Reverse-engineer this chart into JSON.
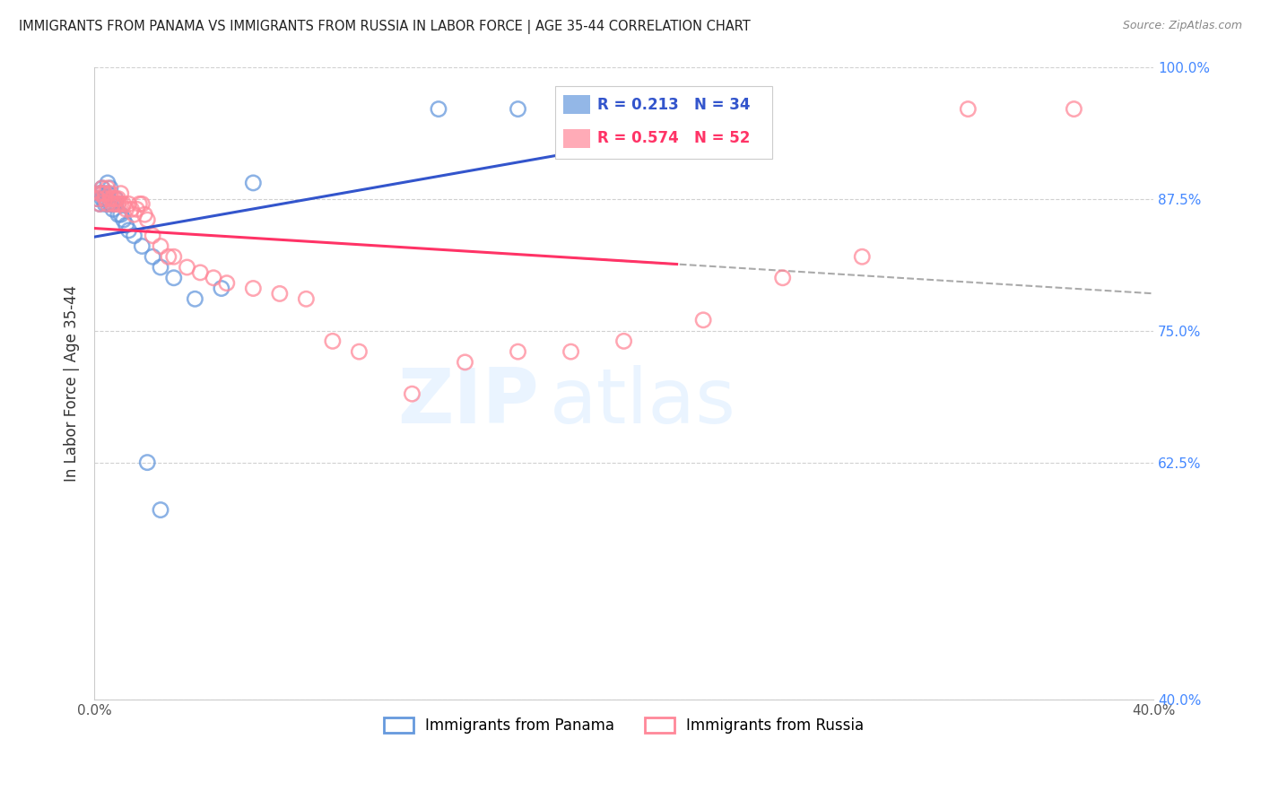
{
  "title": "IMMIGRANTS FROM PANAMA VS IMMIGRANTS FROM RUSSIA IN LABOR FORCE | AGE 35-44 CORRELATION CHART",
  "source": "Source: ZipAtlas.com",
  "ylabel": "In Labor Force | Age 35-44",
  "xlim": [
    0.0,
    0.4
  ],
  "ylim": [
    0.4,
    1.0
  ],
  "xticks": [
    0.0,
    0.05,
    0.1,
    0.15,
    0.2,
    0.25,
    0.3,
    0.35,
    0.4
  ],
  "xticklabels": [
    "0.0%",
    "",
    "",
    "",
    "",
    "",
    "",
    "",
    "40.0%"
  ],
  "yticks": [
    0.4,
    0.625,
    0.75,
    0.875,
    1.0
  ],
  "yticklabels_right": [
    "40.0%",
    "62.5%",
    "75.0%",
    "87.5%",
    "100.0%"
  ],
  "R_panama": 0.213,
  "N_panama": 34,
  "R_russia": 0.574,
  "N_russia": 52,
  "panama_color": "#6699DD",
  "russia_color": "#FF8899",
  "panama_line_color": "#3355CC",
  "russia_line_color": "#FF3366",
  "watermark_zip": "ZIP",
  "watermark_atlas": "atlas",
  "panama_x": [
    0.001,
    0.002,
    0.002,
    0.003,
    0.003,
    0.003,
    0.004,
    0.004,
    0.005,
    0.005,
    0.005,
    0.006,
    0.006,
    0.007,
    0.007,
    0.008,
    0.008,
    0.009,
    0.01,
    0.011,
    0.012,
    0.013,
    0.015,
    0.018,
    0.022,
    0.025,
    0.03,
    0.038,
    0.048,
    0.06,
    0.02,
    0.025,
    0.13,
    0.16
  ],
  "panama_y": [
    0.875,
    0.88,
    0.87,
    0.875,
    0.88,
    0.885,
    0.87,
    0.875,
    0.87,
    0.88,
    0.89,
    0.87,
    0.885,
    0.87,
    0.865,
    0.87,
    0.875,
    0.86,
    0.86,
    0.855,
    0.85,
    0.845,
    0.84,
    0.83,
    0.82,
    0.81,
    0.8,
    0.78,
    0.79,
    0.89,
    0.625,
    0.58,
    0.96,
    0.96
  ],
  "russia_x": [
    0.001,
    0.002,
    0.002,
    0.003,
    0.003,
    0.004,
    0.004,
    0.005,
    0.005,
    0.006,
    0.006,
    0.007,
    0.007,
    0.008,
    0.008,
    0.009,
    0.009,
    0.01,
    0.01,
    0.011,
    0.012,
    0.013,
    0.014,
    0.015,
    0.016,
    0.017,
    0.018,
    0.019,
    0.02,
    0.022,
    0.025,
    0.028,
    0.03,
    0.035,
    0.04,
    0.045,
    0.05,
    0.06,
    0.07,
    0.08,
    0.09,
    0.1,
    0.12,
    0.14,
    0.16,
    0.18,
    0.2,
    0.23,
    0.26,
    0.29,
    0.33,
    0.37
  ],
  "russia_y": [
    0.875,
    0.88,
    0.87,
    0.88,
    0.885,
    0.875,
    0.88,
    0.87,
    0.885,
    0.875,
    0.88,
    0.87,
    0.875,
    0.87,
    0.875,
    0.87,
    0.875,
    0.87,
    0.88,
    0.87,
    0.865,
    0.87,
    0.865,
    0.86,
    0.865,
    0.87,
    0.87,
    0.86,
    0.855,
    0.84,
    0.83,
    0.82,
    0.82,
    0.81,
    0.805,
    0.8,
    0.795,
    0.79,
    0.785,
    0.78,
    0.74,
    0.73,
    0.69,
    0.72,
    0.73,
    0.73,
    0.74,
    0.76,
    0.8,
    0.82,
    0.96,
    0.96
  ],
  "dash_line_start_x": 0.2,
  "dash_line_end_x": 0.4
}
